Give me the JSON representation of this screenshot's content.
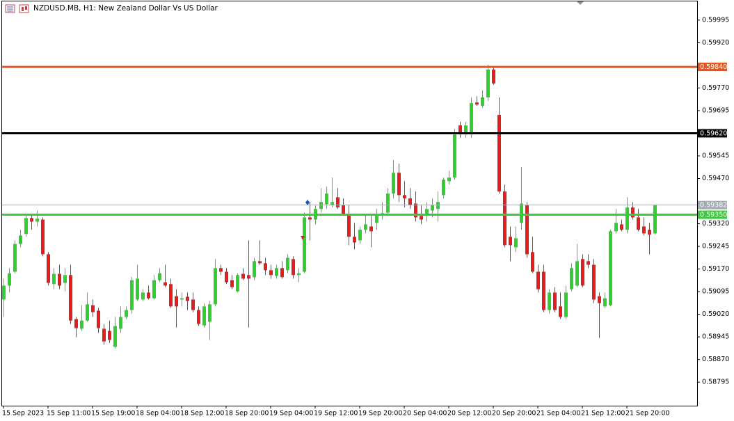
{
  "chart_data": {
    "type": "candlestick",
    "title": "NZDUSD.MB, H1:  New Zealand Dollar Vs US Dollar",
    "up_color": "#2fcf2f",
    "down_color": "#e02020",
    "ylim": [
      0.58717,
      0.60057
    ],
    "yticks": [
      0.59995,
      {
        "value": 0.5992,
        "label": "0.59920"
      },
      {
        "value": 0.5977,
        "label": "0.59770"
      },
      0.59695,
      0.59545,
      {
        "value": 0.5947,
        "label": "0.59470"
      },
      {
        "value": 0.5932,
        "label": "0.59320"
      },
      0.59245,
      {
        "value": 0.5917,
        "label": "0.59170"
      },
      0.59095,
      {
        "value": 0.5902,
        "label": "0.59020"
      },
      0.58945,
      {
        "value": 0.5887,
        "label": "0.58870"
      },
      0.58795
    ],
    "levels": [
      {
        "value": 0.5984,
        "label": "0.59840",
        "color": "#e8541c"
      },
      {
        "value": 0.5962,
        "label": "0.59620",
        "color": "#000000"
      },
      {
        "value": 0.5935,
        "label": "0.59350",
        "color": "#3cc83c"
      }
    ],
    "bid": {
      "value": 0.59382,
      "label": "0.59382",
      "color": "#a4abb3"
    },
    "categories": [
      "15 Sep 2023",
      null,
      null,
      null,
      null,
      null,
      null,
      null,
      "15 Sep 11:00",
      null,
      null,
      null,
      null,
      null,
      null,
      null,
      "15 Sep 19:00",
      null,
      null,
      null,
      null,
      null,
      null,
      null,
      "18 Sep 04:00",
      null,
      null,
      null,
      null,
      null,
      null,
      null,
      "18 Sep 12:00",
      null,
      null,
      null,
      null,
      null,
      null,
      null,
      "18 Sep 20:00",
      null,
      null,
      null,
      null,
      null,
      null,
      null,
      "19 Sep 04:00",
      null,
      null,
      null,
      null,
      null,
      null,
      null,
      "19 Sep 12:00",
      null,
      null,
      null,
      null,
      null,
      null,
      null,
      "19 Sep 20:00",
      null,
      null,
      null,
      null,
      null,
      null,
      null,
      "20 Sep 04:00",
      null,
      null,
      null,
      null,
      null,
      null,
      null,
      "20 Sep 12:00",
      null,
      null,
      null,
      null,
      null,
      null,
      null,
      "20 Sep 20:00",
      null,
      null,
      null,
      null,
      null,
      null,
      null,
      "21 Sep 04:00",
      null,
      null,
      null,
      null,
      null,
      null,
      null,
      "21 Sep 12:00",
      null,
      null,
      null,
      null,
      null,
      null,
      null,
      "21 Sep 20:00",
      null,
      null,
      null,
      null,
      null
    ],
    "open": [
      0.59069,
      0.59115,
      0.59161,
      0.59253,
      0.59286,
      0.59339,
      0.59327,
      0.59334,
      0.59219,
      0.5912,
      0.59154,
      0.59124,
      0.5915,
      0.59004,
      0.58972,
      0.58999,
      0.5905,
      0.59032,
      0.58972,
      0.58965,
      0.58912,
      0.58972,
      0.59011,
      0.59034,
      0.59069,
      0.59069,
      0.59092,
      0.59073,
      0.59133,
      0.59126,
      0.5912,
      0.5908,
      0.59069,
      0.59078,
      0.59069,
      0.59034,
      0.58983,
      0.58995,
      0.59053,
      0.59173,
      0.59161,
      0.59133,
      0.59096,
      0.59154,
      0.5915,
      0.59143,
      0.59196,
      0.59189,
      0.59166,
      0.59147,
      0.59173,
      0.59166,
      0.59203,
      0.5915,
      0.59161,
      0.59341,
      0.59334,
      0.59369,
      0.59385,
      0.59381,
      0.59408,
      0.59381,
      0.59353,
      0.59277,
      0.59265,
      0.593,
      0.59311,
      0.59323,
      0.59346,
      0.59357,
      0.5942,
      0.59489,
      0.59415,
      0.59404,
      0.59387,
      0.59346,
      0.59346,
      0.59364,
      0.59369,
      0.59415,
      0.59461,
      0.59473,
      0.59646,
      0.59616,
      0.59616,
      0.59722,
      0.59711,
      0.59739,
      0.59831,
      0.59681,
      0.59427,
      0.59277,
      0.59242,
      0.59323,
      0.59381,
      0.59226,
      0.59161,
      0.59161,
      0.59034,
      0.59092,
      0.59046,
      0.59011,
      0.59103,
      0.59115,
      0.59203,
      0.59196,
      0.59184,
      0.5908,
      0.59046,
      0.5905,
      0.59295,
      0.59318,
      0.593,
      0.59374,
      0.59341,
      0.59311,
      0.593,
      0.59288
    ],
    "high": [
      0.59138,
      0.59173,
      0.59265,
      0.593,
      0.59351,
      0.59351,
      0.59364,
      0.59341,
      0.59226,
      0.59173,
      0.59184,
      0.59173,
      0.59184,
      0.59011,
      0.5905,
      0.59092,
      0.59069,
      0.59041,
      0.58988,
      0.58999,
      0.59011,
      0.59046,
      0.59046,
      0.59143,
      0.59184,
      0.59103,
      0.59115,
      0.5915,
      0.59173,
      0.59184,
      0.59138,
      0.59103,
      0.59092,
      0.59092,
      0.59092,
      0.59046,
      0.59057,
      0.59064,
      0.59203,
      0.59184,
      0.59173,
      0.5915,
      0.59156,
      0.59173,
      0.59265,
      0.59207,
      0.59265,
      0.59207,
      0.59184,
      0.59184,
      0.59196,
      0.59219,
      0.59212,
      0.59173,
      0.59357,
      0.59392,
      0.59381,
      0.59438,
      0.59443,
      0.59473,
      0.59438,
      0.59404,
      0.59381,
      0.59323,
      0.59311,
      0.59346,
      0.59346,
      0.59369,
      0.59392,
      0.59438,
      0.59531,
      0.59519,
      0.59461,
      0.59438,
      0.59427,
      0.59381,
      0.59392,
      0.59404,
      0.59427,
      0.59473,
      0.59496,
      0.59635,
      0.59658,
      0.59658,
      0.59739,
      0.59743,
      0.59762,
      0.59847,
      0.59838,
      0.59739,
      0.5945,
      0.59311,
      0.59311,
      0.59508,
      0.59392,
      0.59277,
      0.59184,
      0.59184,
      0.59103,
      0.5911,
      0.59092,
      0.59115,
      0.59189,
      0.59253,
      0.59219,
      0.59219,
      0.59203,
      0.59092,
      0.59092,
      0.593,
      0.59369,
      0.59334,
      0.59408,
      0.59392,
      0.59369,
      0.59341,
      0.59323,
      0.59382
    ],
    "low": [
      0.59011,
      0.59092,
      0.59156,
      0.59242,
      0.59277,
      0.593,
      0.59311,
      0.59212,
      0.59115,
      0.59103,
      0.59103,
      0.59096,
      0.58988,
      0.58944,
      0.58965,
      0.58995,
      0.59011,
      0.58958,
      0.58919,
      0.58925,
      0.58907,
      0.58958,
      0.59004,
      0.59022,
      0.59064,
      0.59064,
      0.59069,
      0.59069,
      0.59126,
      0.5911,
      0.59041,
      0.58976,
      0.59046,
      0.59034,
      0.59027,
      0.58981,
      0.58976,
      0.58935,
      0.59046,
      0.5915,
      0.5912,
      0.59103,
      0.59092,
      0.59133,
      0.58976,
      0.59133,
      0.59184,
      0.5915,
      0.59138,
      0.59138,
      0.59138,
      0.59156,
      0.59138,
      0.59126,
      0.59156,
      0.59265,
      0.59318,
      0.59357,
      0.59369,
      0.59374,
      0.59369,
      0.59346,
      0.59249,
      0.59235,
      0.59253,
      0.59288,
      0.59242,
      0.593,
      0.59334,
      0.59346,
      0.59404,
      0.59392,
      0.59374,
      0.59369,
      0.59327,
      0.59318,
      0.59327,
      0.59341,
      0.59327,
      0.59404,
      0.5945,
      0.59466,
      0.59605,
      0.59605,
      0.59605,
      0.59711,
      0.59704,
      0.59727,
      0.5978,
      0.5942,
      0.59242,
      0.59196,
      0.59226,
      0.593,
      0.59207,
      0.59156,
      0.59092,
      0.59027,
      0.59022,
      0.59027,
      0.59004,
      0.59004,
      0.59096,
      0.5911,
      0.5911,
      0.59173,
      0.59057,
      0.58942,
      0.59041,
      0.59046,
      0.59288,
      0.59295,
      0.59288,
      0.59334,
      0.59295,
      0.59281,
      0.59219,
      0.59284
    ],
    "close": [
      0.59115,
      0.59156,
      0.59253,
      0.59281,
      0.59339,
      0.59327,
      0.59337,
      0.59219,
      0.59124,
      0.59154,
      0.59115,
      0.5915,
      0.58999,
      0.58974,
      0.58999,
      0.59053,
      0.59027,
      0.58974,
      0.5893,
      0.58935,
      0.58981,
      0.59011,
      0.59034,
      0.59133,
      0.59138,
      0.59092,
      0.59073,
      0.59133,
      0.59156,
      0.59115,
      0.59046,
      0.59046,
      0.59073,
      0.59064,
      0.59034,
      0.58988,
      0.59046,
      0.59053,
      0.59173,
      0.59161,
      0.59126,
      0.5911,
      0.5915,
      0.59138,
      0.59138,
      0.59196,
      0.59189,
      0.59166,
      0.5915,
      0.59173,
      0.59143,
      0.59207,
      0.5915,
      0.59156,
      0.59341,
      0.59334,
      0.59369,
      0.59392,
      0.5942,
      0.59392,
      0.59374,
      0.59353,
      0.59277,
      0.59258,
      0.593,
      0.59318,
      0.59295,
      0.59351,
      0.59355,
      0.5942,
      0.59489,
      0.59415,
      0.59404,
      0.59381,
      0.59341,
      0.59334,
      0.59369,
      0.59381,
      0.59392,
      0.59466,
      0.59473,
      0.59616,
      0.59616,
      0.59646,
      0.5972,
      0.59715,
      0.59739,
      0.59831,
      0.59785,
      0.59427,
      0.59249,
      0.59249,
      0.59272,
      0.59387,
      0.59219,
      0.59161,
      0.59103,
      0.59034,
      0.59092,
      0.59034,
      0.59011,
      0.59092,
      0.59173,
      0.59196,
      0.59115,
      0.59184,
      0.59069,
      0.59057,
      0.59073,
      0.59295,
      0.59323,
      0.593,
      0.59374,
      0.59341,
      0.593,
      0.59288,
      0.59284,
      0.59382
    ]
  }
}
